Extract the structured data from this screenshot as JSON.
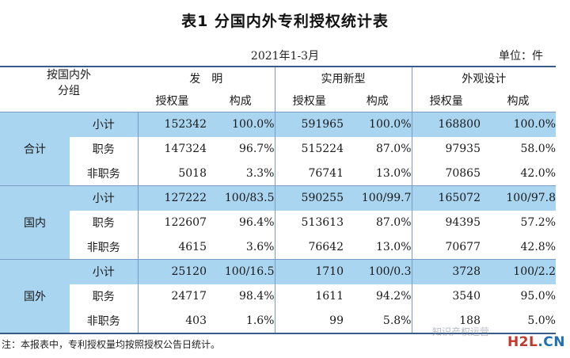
{
  "title": "表1  分国内外专利授权统计表",
  "period": "2021年1-3月",
  "unit": "单位：件",
  "header": {
    "row_label": "按国内外\n分组",
    "categories": [
      "发　明",
      "实用新型",
      "外观设计"
    ],
    "sub": [
      "授权量",
      "构成"
    ]
  },
  "sections": [
    {
      "group": "合计",
      "rows": [
        {
          "label": "小计",
          "values": [
            "152342",
            "100.0%",
            "591965",
            "100.0%",
            "168800",
            "100.0%"
          ]
        },
        {
          "label": "职务",
          "values": [
            "147324",
            "96.7%",
            "515224",
            "87.0%",
            "97935",
            "58.0%"
          ]
        },
        {
          "label": "非职务",
          "values": [
            "5018",
            "3.3%",
            "76741",
            "13.0%",
            "70865",
            "42.0%"
          ]
        }
      ]
    },
    {
      "group": "国内",
      "rows": [
        {
          "label": "小计",
          "values": [
            "127222",
            "100/83.5",
            "590255",
            "100/99.7",
            "165072",
            "100/97.8"
          ]
        },
        {
          "label": "职务",
          "values": [
            "122607",
            "96.4%",
            "513613",
            "87.0%",
            "94395",
            "57.2%"
          ]
        },
        {
          "label": "非职务",
          "values": [
            "4615",
            "3.6%",
            "76642",
            "13.0%",
            "70677",
            "42.8%"
          ]
        }
      ]
    },
    {
      "group": "国外",
      "rows": [
        {
          "label": "小计",
          "values": [
            "25120",
            "100/16.5",
            "1710",
            "100/0.3",
            "3728",
            "100/2.2"
          ]
        },
        {
          "label": "职务",
          "values": [
            "24717",
            "98.4%",
            "1611",
            "94.2%",
            "3540",
            "95.0%"
          ]
        },
        {
          "label": "非职务",
          "values": [
            "403",
            "1.6%",
            "99",
            "5.8%",
            "188",
            "5.0%"
          ]
        }
      ]
    }
  ],
  "note": "注：本报表中，专利授权量均按照授权公告日统计。",
  "watermark": "知识产权运营",
  "logo": {
    "part1": "H2L",
    "part2": ".CN"
  }
}
